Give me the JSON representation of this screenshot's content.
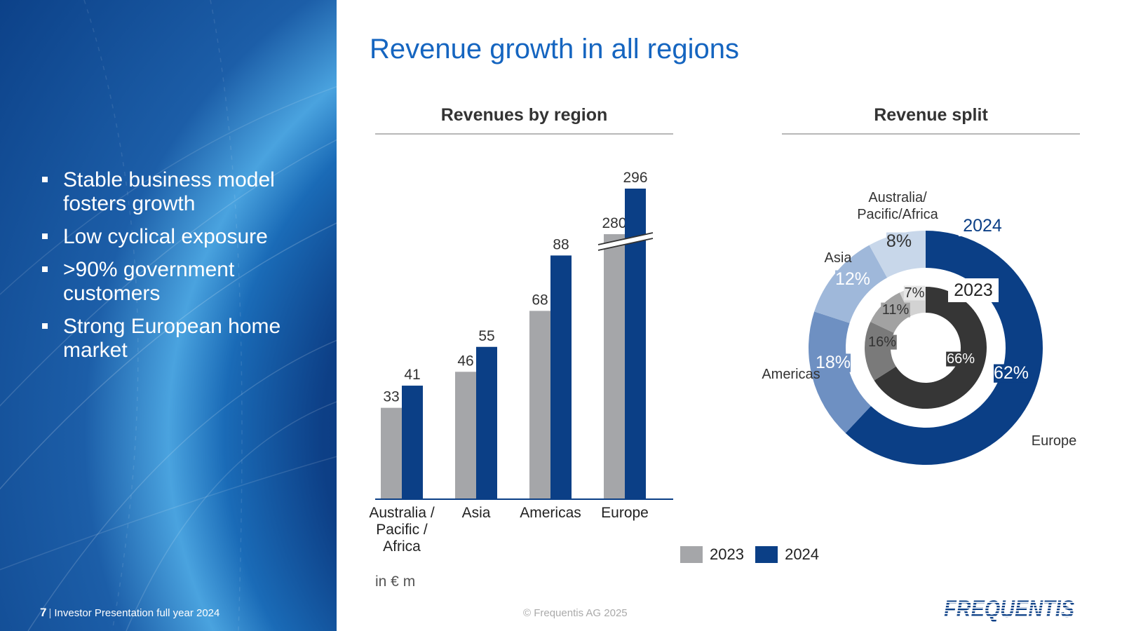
{
  "sidebar": {
    "bullets": [
      "Stable business model fosters growth",
      "Low cyclical exposure",
      ">90% government customers",
      "Strong European home market"
    ]
  },
  "footer": {
    "page_number": "7",
    "presentation_title": "Investor Presentation full year 2024",
    "copyright": "© Frequentis AG 2025",
    "brand": "FREQUENTIS"
  },
  "title": "Revenue growth in all regions",
  "unit_note": "in € m",
  "colors": {
    "year_2023": "#a5a6a9",
    "year_2024": "#0b3f86",
    "title_blue": "#1565c0",
    "outer_ring": [
      "#c8d7ea",
      "#9fb8da",
      "#6e90c2",
      "#0b3f86"
    ],
    "inner_ring": [
      "#d3d3d3",
      "#a2a2a2",
      "#7a7a7a",
      "#363636"
    ]
  },
  "chart_data": [
    {
      "type": "bar",
      "title": "Revenues by region",
      "categories": [
        "Australia / Pacific / Africa",
        "Asia",
        "Americas",
        "Europe"
      ],
      "category_lines": [
        [
          "Australia /",
          "Pacific /",
          "Africa"
        ],
        [
          "Asia"
        ],
        [
          "Americas"
        ],
        [
          "Europe"
        ]
      ],
      "series": [
        {
          "name": "2023",
          "values": [
            33,
            46,
            68,
            280
          ]
        },
        {
          "name": "2024",
          "values": [
            41,
            55,
            88,
            296
          ]
        }
      ],
      "axis_break": "Europe bars broken (scale interrupted)",
      "legend": "bottom"
    },
    {
      "type": "pie",
      "title": "Revenue split",
      "labels": [
        "Australia/ Pacific/Africa",
        "Asia",
        "Americas",
        "Europe"
      ],
      "label_lines": [
        [
          "Australia/",
          "Pacific/Africa"
        ],
        [
          "Asia"
        ],
        [
          "Americas"
        ],
        [
          "Europe"
        ]
      ],
      "rings": [
        {
          "name": "2024",
          "position": "outer",
          "values": [
            8,
            12,
            18,
            62
          ],
          "labels": [
            "8%",
            "12%",
            "18%",
            "62%"
          ]
        },
        {
          "name": "2023",
          "position": "inner",
          "values": [
            7,
            11,
            16,
            66
          ],
          "labels": [
            "7%",
            "11%",
            "16%",
            "66%"
          ]
        }
      ]
    }
  ]
}
